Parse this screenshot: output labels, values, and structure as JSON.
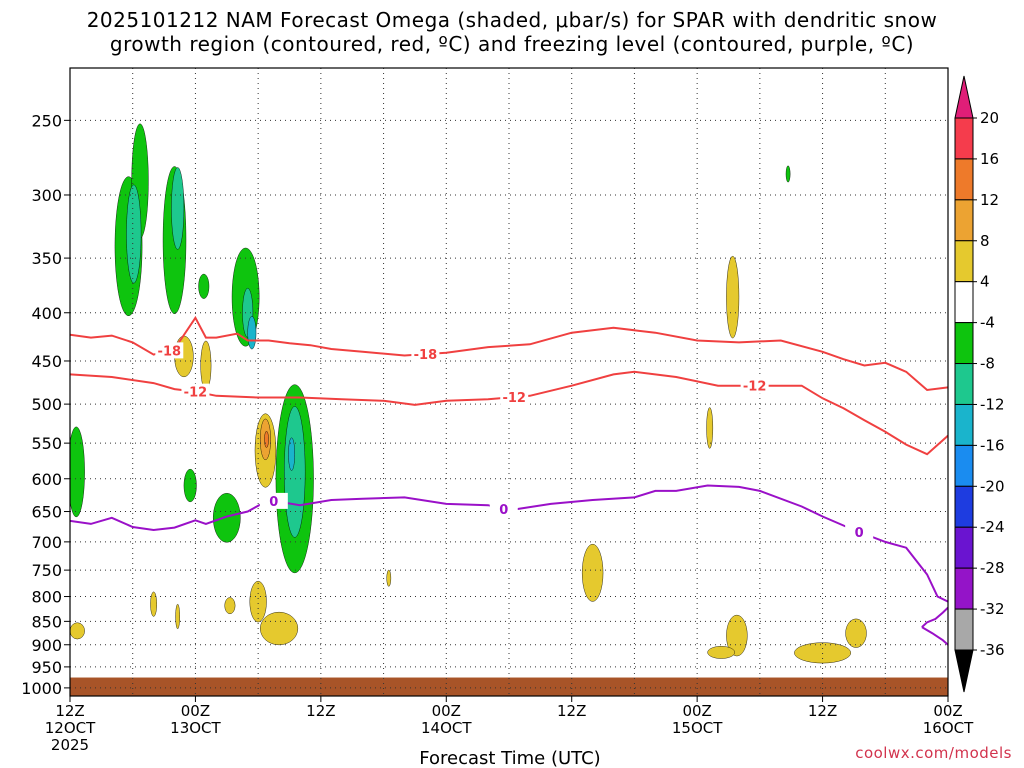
{
  "chart_data": {
    "type": "contour",
    "title_line1": "2025101212 NAM Forecast Omega (shaded, μbar/s) for SPAR with dendritic snow",
    "title_line2": "growth region (contoured, red, ºC) and freezing level (contoured, purple, ºC)",
    "xlabel": "Forecast Time (UTC)",
    "credit": "coolwx.com/models",
    "x_range_hours": [
      0,
      84
    ],
    "y_range_mb": [
      220,
      1020
    ],
    "y_scale": "log",
    "y_ticks": [
      250,
      300,
      350,
      400,
      450,
      500,
      550,
      600,
      650,
      700,
      750,
      800,
      850,
      900,
      950,
      1000
    ],
    "x_ticks": [
      {
        "hour": 0,
        "line1": "12Z",
        "line2": "12OCT",
        "line3": "2025"
      },
      {
        "hour": 12,
        "line1": "00Z",
        "line2": "13OCT"
      },
      {
        "hour": 24,
        "line1": "12Z"
      },
      {
        "hour": 36,
        "line1": "00Z",
        "line2": "14OCT"
      },
      {
        "hour": 48,
        "line1": "12Z"
      },
      {
        "hour": 60,
        "line1": "00Z",
        "line2": "15OCT"
      },
      {
        "hour": 72,
        "line1": "12Z"
      },
      {
        "hour": 84,
        "line1": "00Z",
        "line2": "16OCT"
      }
    ],
    "colorbar": {
      "levels": [
        20,
        16,
        12,
        8,
        4,
        -4,
        -8,
        -12,
        -16,
        -20,
        -24,
        -28,
        -32,
        -36
      ],
      "colors": [
        "#f53c4c",
        "#ee7a2a",
        "#eca332",
        "#e5c92e",
        "#ffffff",
        "#0ec40e",
        "#1ec88e",
        "#1ab4cc",
        "#1a8cf0",
        "#1e3ce0",
        "#6a14d0",
        "#9414c8",
        "#a8a8a8"
      ],
      "top_color": "#e01e78",
      "bottom_color": "#000000"
    },
    "contours": [
      {
        "name": "minus-18C",
        "label": "-18",
        "color": "#f04040",
        "points": [
          [
            0,
            422
          ],
          [
            2,
            425
          ],
          [
            4,
            423
          ],
          [
            6,
            430
          ],
          [
            8,
            443
          ],
          [
            10,
            437
          ],
          [
            12,
            405
          ],
          [
            13,
            425
          ],
          [
            14,
            425
          ],
          [
            16,
            421
          ],
          [
            17,
            428
          ],
          [
            19,
            428
          ],
          [
            21,
            431
          ],
          [
            23,
            433
          ],
          [
            25,
            437
          ],
          [
            28,
            440
          ],
          [
            32,
            444
          ],
          [
            36,
            441
          ],
          [
            40,
            435
          ],
          [
            44,
            432
          ],
          [
            48,
            420
          ],
          [
            52,
            415
          ],
          [
            56,
            420
          ],
          [
            60,
            428
          ],
          [
            64,
            430
          ],
          [
            68,
            428
          ],
          [
            72,
            440
          ],
          [
            74,
            448
          ],
          [
            76,
            455
          ],
          [
            78,
            452
          ],
          [
            80,
            462
          ],
          [
            82,
            483
          ],
          [
            84,
            480
          ]
        ],
        "label_hours": [
          9.5,
          34
        ]
      },
      {
        "name": "minus-12C",
        "label": "-12",
        "color": "#f04040",
        "points": [
          [
            0,
            465
          ],
          [
            4,
            468
          ],
          [
            8,
            475
          ],
          [
            10,
            482
          ],
          [
            12,
            485
          ],
          [
            14,
            490
          ],
          [
            18,
            492
          ],
          [
            22,
            492
          ],
          [
            26,
            494
          ],
          [
            30,
            496
          ],
          [
            33,
            501
          ],
          [
            36,
            496
          ],
          [
            40,
            494
          ],
          [
            44,
            490
          ],
          [
            48,
            478
          ],
          [
            52,
            465
          ],
          [
            54,
            462
          ],
          [
            58,
            468
          ],
          [
            62,
            478
          ],
          [
            66,
            478
          ],
          [
            70,
            478
          ],
          [
            72,
            493
          ],
          [
            74,
            505
          ],
          [
            76,
            520
          ],
          [
            78,
            535
          ],
          [
            80,
            552
          ],
          [
            82,
            565
          ],
          [
            84,
            540
          ]
        ],
        "label_hours": [
          12,
          42.5,
          65.5
        ]
      },
      {
        "name": "zero-C",
        "label": "0",
        "color": "#9a10c8",
        "points": [
          [
            0,
            665
          ],
          [
            2,
            670
          ],
          [
            4,
            660
          ],
          [
            6,
            675
          ],
          [
            8,
            680
          ],
          [
            10,
            676
          ],
          [
            12,
            664
          ],
          [
            13,
            670
          ],
          [
            15,
            658
          ],
          [
            17,
            650
          ],
          [
            19,
            632
          ],
          [
            22,
            640
          ],
          [
            25,
            632
          ],
          [
            28,
            630
          ],
          [
            32,
            628
          ],
          [
            36,
            638
          ],
          [
            40,
            640
          ],
          [
            42,
            648
          ],
          [
            46,
            638
          ],
          [
            50,
            632
          ],
          [
            54,
            628
          ],
          [
            56,
            618
          ],
          [
            58,
            618
          ],
          [
            61,
            610
          ],
          [
            64,
            612
          ],
          [
            66,
            618
          ],
          [
            70,
            642
          ],
          [
            72,
            658
          ],
          [
            75,
            680
          ],
          [
            78,
            700
          ],
          [
            80,
            710
          ],
          [
            82,
            758
          ],
          [
            83,
            800
          ],
          [
            84,
            810
          ]
        ],
        "label_hours": [
          19.5,
          41.5,
          75.5
        ]
      },
      {
        "name": "zero-C-lower",
        "label": "",
        "color": "#9a10c8",
        "points": [
          [
            81.5,
            862
          ],
          [
            82,
            852
          ],
          [
            82.8,
            845
          ],
          [
            83.5,
            832
          ],
          [
            84,
            822
          ]
        ],
        "label_hours": []
      },
      {
        "name": "zero-C-lowest",
        "label": "",
        "color": "#9a10c8",
        "points": [
          [
            81.5,
            862
          ],
          [
            82.5,
            875
          ],
          [
            83.5,
            890
          ],
          [
            84,
            900
          ]
        ],
        "label_hours": []
      }
    ],
    "ground": {
      "top_mb": 975,
      "bottom_mb": 1020,
      "color": "#a85428"
    },
    "blobs": [
      {
        "h": 5.6,
        "p": 340,
        "dh": 1.3,
        "dlp": 0.17,
        "color": "#0ec40e"
      },
      {
        "h": 6.7,
        "p": 290,
        "dh": 0.8,
        "dlp": 0.14,
        "color": "#0ec40e"
      },
      {
        "h": 6.1,
        "p": 330,
        "dh": 0.7,
        "dlp": 0.12,
        "color": "#1ec88e"
      },
      {
        "h": 10.0,
        "p": 335,
        "dh": 1.1,
        "dlp": 0.18,
        "color": "#0ec40e"
      },
      {
        "h": 10.3,
        "p": 310,
        "dh": 0.6,
        "dlp": 0.1,
        "color": "#1ec88e"
      },
      {
        "h": 12.8,
        "p": 375,
        "dh": 0.5,
        "dlp": 0.03,
        "color": "#0ec40e"
      },
      {
        "h": 16.8,
        "p": 385,
        "dh": 1.3,
        "dlp": 0.12,
        "color": "#0ec40e"
      },
      {
        "h": 17.0,
        "p": 400,
        "dh": 0.5,
        "dlp": 0.06,
        "color": "#1ec88e"
      },
      {
        "h": 17.4,
        "p": 420,
        "dh": 0.4,
        "dlp": 0.04,
        "color": "#1ab4cc"
      },
      {
        "h": 0.6,
        "p": 590,
        "dh": 0.8,
        "dlp": 0.11,
        "color": "#0ec40e"
      },
      {
        "h": 11.5,
        "p": 610,
        "dh": 0.6,
        "dlp": 0.04,
        "color": "#0ec40e"
      },
      {
        "h": 15.0,
        "p": 660,
        "dh": 1.3,
        "dlp": 0.06,
        "color": "#0ec40e"
      },
      {
        "h": 21.5,
        "p": 600,
        "dh": 1.8,
        "dlp": 0.23,
        "color": "#0ec40e"
      },
      {
        "h": 21.5,
        "p": 590,
        "dh": 1.0,
        "dlp": 0.16,
        "color": "#1ec88e"
      },
      {
        "h": 21.2,
        "p": 565,
        "dh": 0.3,
        "dlp": 0.04,
        "color": "#1ab4cc"
      },
      {
        "h": 68.7,
        "p": 285,
        "dh": 0.2,
        "dlp": 0.02,
        "color": "#0ec40e"
      },
      {
        "h": 10.9,
        "p": 445,
        "dh": 0.9,
        "dlp": 0.05,
        "color": "#e5c92e"
      },
      {
        "h": 13.0,
        "p": 455,
        "dh": 0.5,
        "dlp": 0.06,
        "color": "#e5c92e"
      },
      {
        "h": 18.7,
        "p": 560,
        "dh": 1.0,
        "dlp": 0.09,
        "color": "#e5c92e"
      },
      {
        "h": 18.7,
        "p": 545,
        "dh": 0.5,
        "dlp": 0.05,
        "color": "#eca332"
      },
      {
        "h": 18.8,
        "p": 545,
        "dh": 0.2,
        "dlp": 0.02,
        "color": "#ee7a2a"
      },
      {
        "h": 18.0,
        "p": 810,
        "dh": 0.8,
        "dlp": 0.05,
        "color": "#e5c92e"
      },
      {
        "h": 20.0,
        "p": 865,
        "dh": 1.8,
        "dlp": 0.04,
        "color": "#e5c92e"
      },
      {
        "h": 8.0,
        "p": 815,
        "dh": 0.3,
        "dlp": 0.03,
        "color": "#e5c92e"
      },
      {
        "h": 10.3,
        "p": 840,
        "dh": 0.2,
        "dlp": 0.03,
        "color": "#e5c92e"
      },
      {
        "h": 15.3,
        "p": 818,
        "dh": 0.5,
        "dlp": 0.02,
        "color": "#e5c92e"
      },
      {
        "h": 0.7,
        "p": 870,
        "dh": 0.7,
        "dlp": 0.02,
        "color": "#e5c92e"
      },
      {
        "h": 30.5,
        "p": 765,
        "dh": 0.2,
        "dlp": 0.02,
        "color": "#e5c92e"
      },
      {
        "h": 50.0,
        "p": 755,
        "dh": 1.0,
        "dlp": 0.07,
        "color": "#e5c92e"
      },
      {
        "h": 63.4,
        "p": 385,
        "dh": 0.6,
        "dlp": 0.1,
        "color": "#e5c92e"
      },
      {
        "h": 61.2,
        "p": 530,
        "dh": 0.3,
        "dlp": 0.05,
        "color": "#e5c92e"
      },
      {
        "h": 63.8,
        "p": 880,
        "dh": 1.0,
        "dlp": 0.05,
        "color": "#e5c92e"
      },
      {
        "h": 62.3,
        "p": 917,
        "dh": 1.3,
        "dlp": 0.015,
        "color": "#e5c92e"
      },
      {
        "h": 72.0,
        "p": 918,
        "dh": 2.7,
        "dlp": 0.025,
        "color": "#e5c92e"
      },
      {
        "h": 75.2,
        "p": 875,
        "dh": 1.0,
        "dlp": 0.035,
        "color": "#e5c92e"
      }
    ]
  }
}
